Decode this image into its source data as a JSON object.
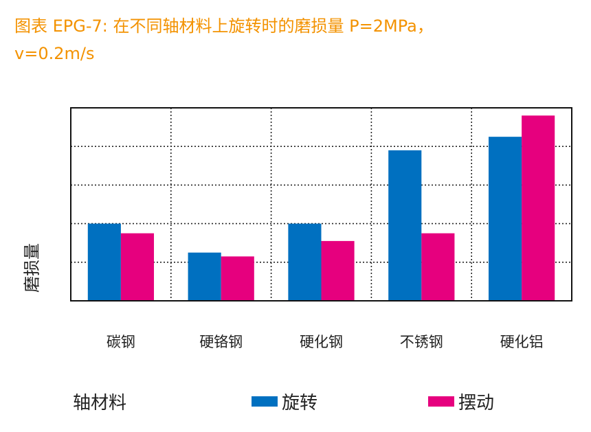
{
  "title": {
    "line1": "图表 EPG-7: 在不同轴材料上旋转时的磨损量 P=2MPa，",
    "line2": "v=0.2m/s"
  },
  "colors": {
    "title": "#f39200",
    "series_blue": "#0070c0",
    "series_magenta": "#e6007e"
  },
  "chart_data": {
    "type": "bar",
    "ylabel": "磨损量",
    "xlabel": "轴材料",
    "categories": [
      "碳钢",
      "硬铬钢",
      "硬化钢",
      "不锈钢",
      "硬化铝"
    ],
    "series": [
      {
        "name": "旋转",
        "color": "#0070c0",
        "values": [
          2.0,
          1.25,
          2.0,
          3.9,
          4.25
        ]
      },
      {
        "name": "摆动",
        "color": "#e6007e",
        "values": [
          1.75,
          1.15,
          1.55,
          1.75,
          4.8
        ]
      }
    ],
    "ylim": [
      0,
      5
    ],
    "grid": true,
    "y_tick_labels_shown": false
  }
}
